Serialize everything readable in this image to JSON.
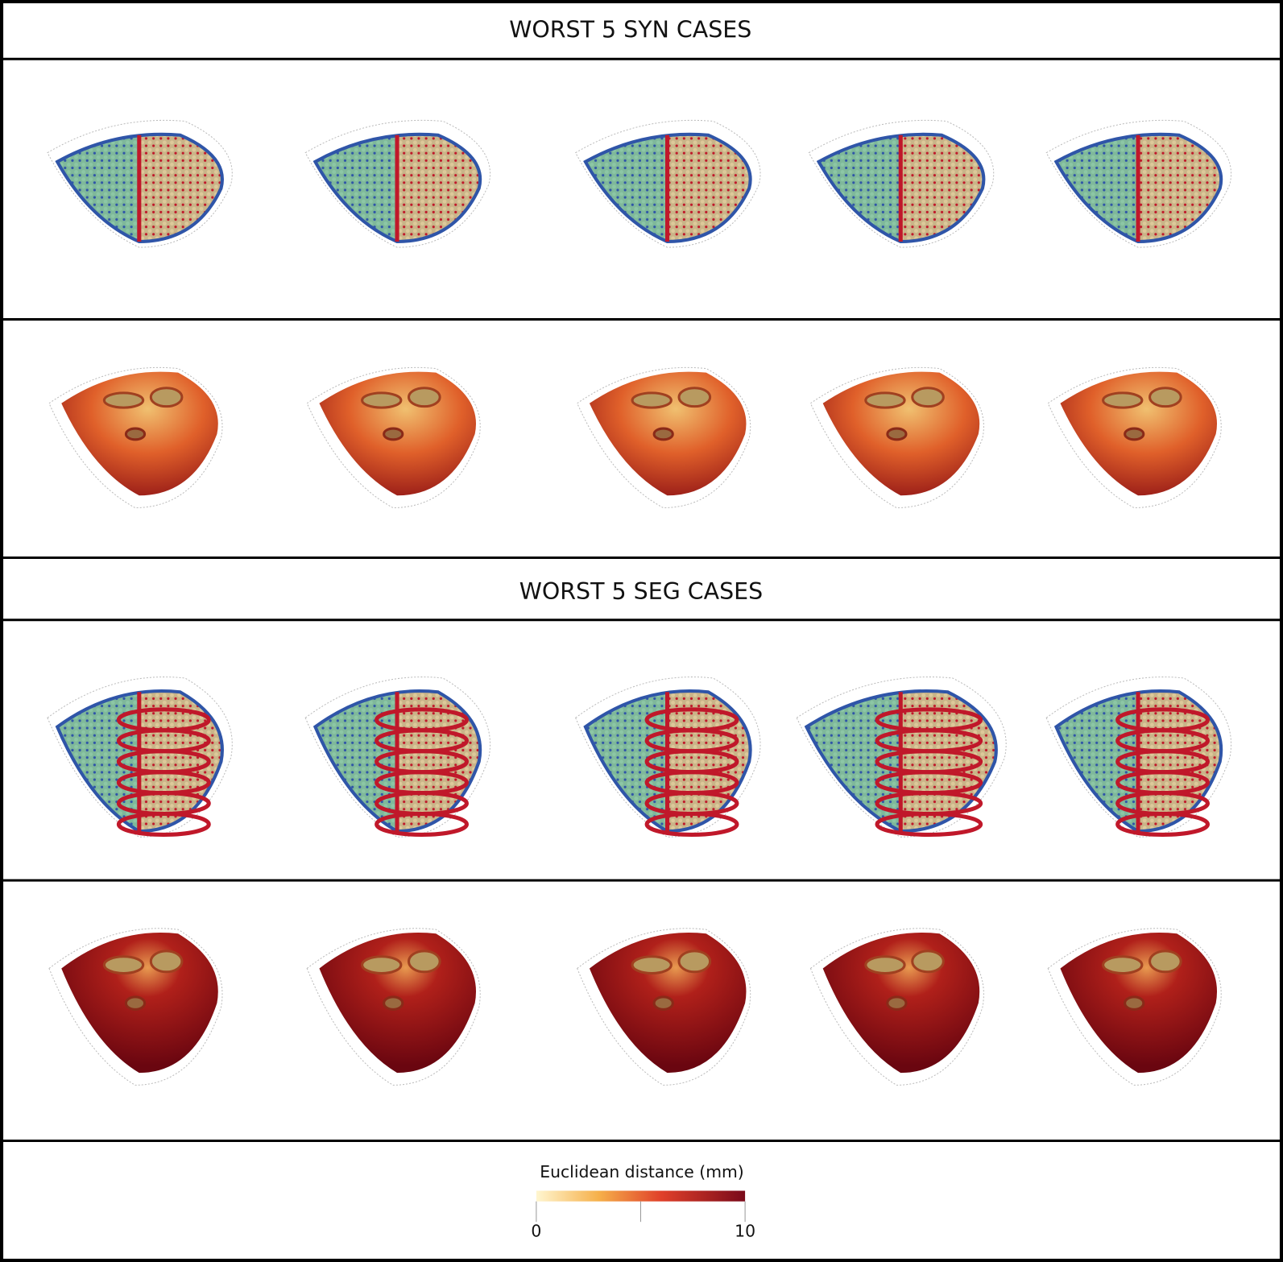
{
  "sections": [
    {
      "title": "WORST 5 SYN CASES"
    },
    {
      "title": "WORST 5 SEG CASES"
    }
  ],
  "colorbar": {
    "label": "Euclidean distance (mm)",
    "range": [
      0,
      10
    ],
    "ticks": [
      0,
      10
    ]
  }
}
